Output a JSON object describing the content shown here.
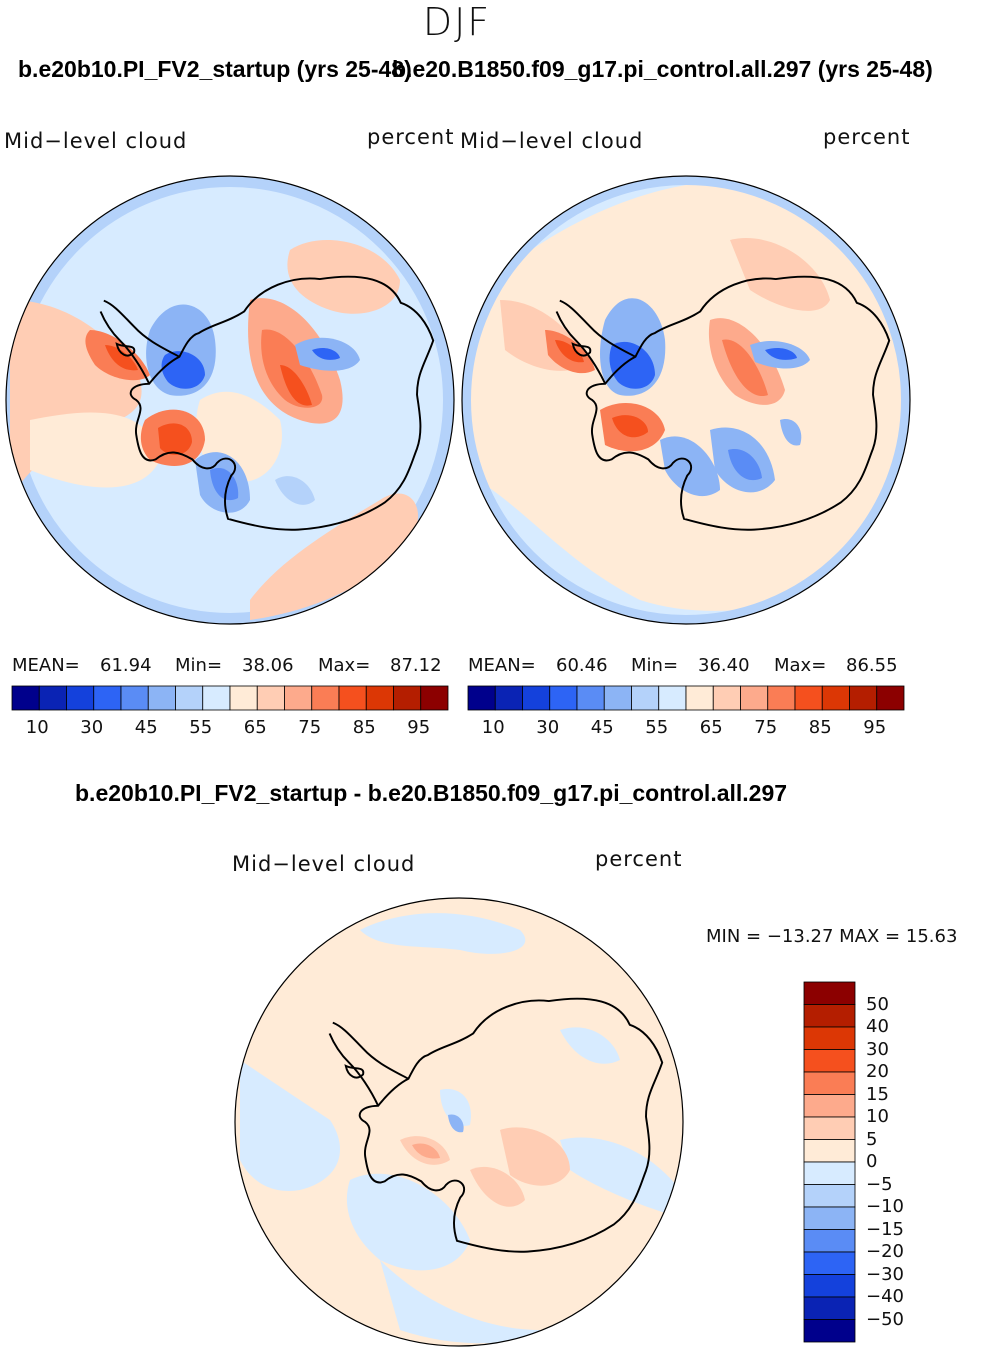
{
  "season": "DJF",
  "left_panel": {
    "header": "b.e20b10.PI_FV2_startup (yrs 25-48)",
    "variable": "Mid−level  cloud",
    "units": "percent",
    "mean_label": "MEAN=",
    "mean": "61.94",
    "min_label": "Min=",
    "min": "38.06",
    "max_label": "Max=",
    "max": "87.12"
  },
  "right_panel": {
    "header": "b.e20.B1850.f09_g17.pi_control.all.297 (yrs 25-48)",
    "variable": "Mid−level  cloud",
    "units": "percent",
    "mean_label": "MEAN=",
    "mean": "60.46",
    "min_label": "Min=",
    "min": "36.40",
    "max_label": "Max=",
    "max": "86.55"
  },
  "diff_panel": {
    "header": "b.e20b10.PI_FV2_startup - b.e20.B1850.f09_g17.pi_control.all.297",
    "variable": "Mid−level  cloud",
    "units": "percent",
    "range_text": "MIN = −13.27  MAX =   15.63"
  },
  "field_colorbar": {
    "colors": [
      "#00008c",
      "#0a23b4",
      "#1441dc",
      "#2d64f5",
      "#5a8cf5",
      "#8cb4f5",
      "#b4d2fa",
      "#d7ebff",
      "#ffebd7",
      "#ffcdb4",
      "#fdaa8c",
      "#fa7d55",
      "#f5501e",
      "#dc3705",
      "#b41e00",
      "#8c0000"
    ],
    "labels": [
      "10",
      "30",
      "45",
      "55",
      "65",
      "75",
      "85",
      "95"
    ]
  },
  "diff_colorbar": {
    "colors": [
      "#8c0000",
      "#b41e00",
      "#dc3705",
      "#f5501e",
      "#fa7d55",
      "#fdaa8c",
      "#ffcdb4",
      "#ffebd7",
      "#d7ebff",
      "#b4d2fa",
      "#8cb4f5",
      "#5a8cf5",
      "#2d64f5",
      "#1441dc",
      "#0a23b4",
      "#00008c"
    ],
    "labels": [
      "50",
      "40",
      "30",
      "20",
      "15",
      "10",
      "5",
      "0",
      "−5",
      "−10",
      "−15",
      "−20",
      "−30",
      "−40",
      "−50"
    ]
  }
}
